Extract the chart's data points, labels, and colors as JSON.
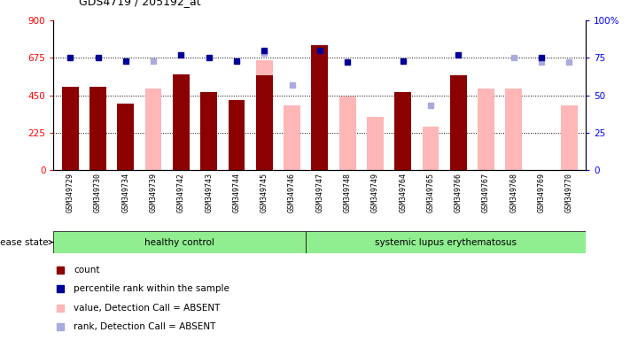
{
  "title": "GDS4719 / 205192_at",
  "samples": [
    "GSM349729",
    "GSM349730",
    "GSM349734",
    "GSM349739",
    "GSM349742",
    "GSM349743",
    "GSM349744",
    "GSM349745",
    "GSM349746",
    "GSM349747",
    "GSM349748",
    "GSM349749",
    "GSM349764",
    "GSM349765",
    "GSM349766",
    "GSM349767",
    "GSM349768",
    "GSM349769",
    "GSM349770"
  ],
  "healthy_count": 9,
  "sle_count": 10,
  "count_values": [
    500,
    500,
    400,
    null,
    575,
    470,
    420,
    570,
    null,
    750,
    null,
    null,
    470,
    null,
    570,
    null,
    null,
    null,
    null
  ],
  "value_absent": [
    null,
    null,
    null,
    490,
    null,
    null,
    null,
    660,
    390,
    null,
    440,
    320,
    null,
    260,
    null,
    490,
    490,
    null,
    390
  ],
  "percentile_rank": [
    75,
    75,
    73,
    null,
    77,
    75,
    73,
    80,
    null,
    80,
    72,
    null,
    73,
    null,
    77,
    null,
    null,
    75,
    null
  ],
  "rank_absent": [
    null,
    null,
    null,
    73,
    null,
    null,
    null,
    78,
    57,
    null,
    null,
    null,
    null,
    43,
    null,
    null,
    75,
    72,
    72
  ],
  "ylim_left": [
    0,
    900
  ],
  "ylim_right": [
    0,
    100
  ],
  "yticks_left": [
    0,
    225,
    450,
    675,
    900
  ],
  "yticks_right": [
    0,
    25,
    50,
    75,
    100
  ],
  "bar_color_dark": "#8B0000",
  "bar_color_light": "#FFB6B6",
  "dot_color_dark": "#000099",
  "dot_color_light": "#AAAADD",
  "group_color": "#90EE90",
  "legend_labels": [
    "count",
    "percentile rank within the sample",
    "value, Detection Call = ABSENT",
    "rank, Detection Call = ABSENT"
  ],
  "legend_colors": [
    "#8B0000",
    "#000099",
    "#FFB6B6",
    "#AAAADD"
  ],
  "bar_width": 0.6
}
